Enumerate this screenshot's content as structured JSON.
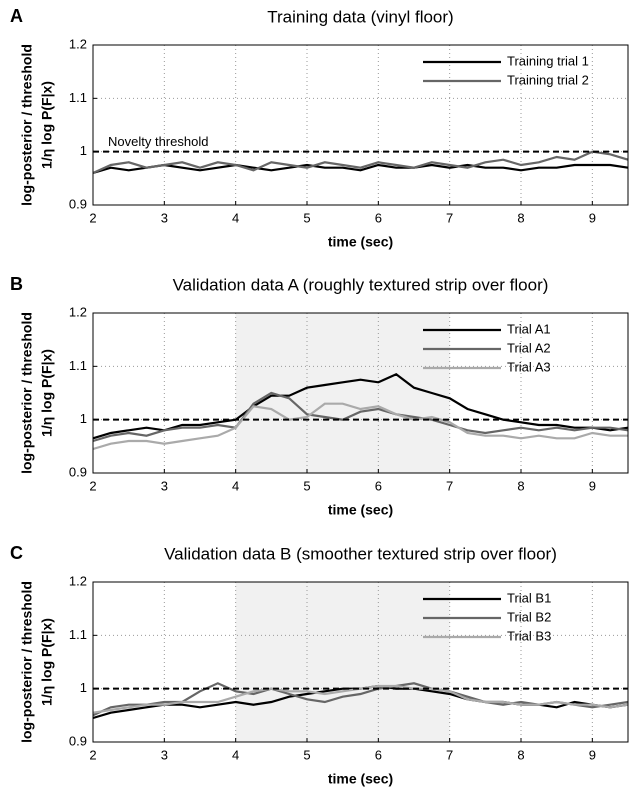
{
  "chart_data": [
    {
      "type": "line",
      "panel_label": "A",
      "title": "Training data (vinyl floor)",
      "xlabel": "time (sec)",
      "ylabel": [
        "log-posterior / threshold",
        "1/η log P(F|x)"
      ],
      "xlim": [
        2,
        9.5
      ],
      "ylim": [
        0.9,
        1.2
      ],
      "xticks": [
        2,
        3,
        4,
        5,
        6,
        7,
        8,
        9
      ],
      "yticks": [
        0.9,
        1,
        1.1,
        1.2
      ],
      "grid": true,
      "legend": "upper right",
      "threshold": 1,
      "annotation": "Novelty threshold",
      "x": [
        2,
        2.25,
        2.5,
        2.75,
        3,
        3.25,
        3.5,
        3.75,
        4,
        4.25,
        4.5,
        4.75,
        5,
        5.25,
        5.5,
        5.75,
        6,
        6.25,
        6.5,
        6.75,
        7,
        7.25,
        7.5,
        7.75,
        8,
        8.25,
        8.5,
        8.75,
        9,
        9.25,
        9.5
      ],
      "series": [
        {
          "name": "Training trial 1",
          "color": "#000000",
          "values": [
            0.96,
            0.97,
            0.965,
            0.97,
            0.975,
            0.97,
            0.965,
            0.97,
            0.975,
            0.97,
            0.965,
            0.97,
            0.975,
            0.97,
            0.97,
            0.965,
            0.975,
            0.97,
            0.97,
            0.975,
            0.97,
            0.975,
            0.97,
            0.97,
            0.965,
            0.97,
            0.97,
            0.975,
            0.975,
            0.975,
            0.97
          ]
        },
        {
          "name": "Training trial 2",
          "color": "#666666",
          "values": [
            0.96,
            0.975,
            0.98,
            0.97,
            0.975,
            0.98,
            0.97,
            0.98,
            0.975,
            0.965,
            0.98,
            0.975,
            0.97,
            0.98,
            0.975,
            0.97,
            0.98,
            0.975,
            0.97,
            0.98,
            0.975,
            0.97,
            0.98,
            0.985,
            0.975,
            0.98,
            0.99,
            0.985,
            1.0,
            0.995,
            0.985
          ]
        }
      ]
    },
    {
      "type": "line",
      "panel_label": "B",
      "title": "Validation data A (roughly textured strip over floor)",
      "xlabel": "time (sec)",
      "ylabel": [
        "log-posterior / threshold",
        "1/η log P(F|x)"
      ],
      "xlim": [
        2,
        9.5
      ],
      "ylim": [
        0.9,
        1.2
      ],
      "xticks": [
        2,
        3,
        4,
        5,
        6,
        7,
        8,
        9
      ],
      "yticks": [
        0.9,
        1,
        1.1,
        1.2
      ],
      "grid": true,
      "legend": "upper right",
      "threshold": 1,
      "shaded_region": [
        4,
        7
      ],
      "x": [
        2,
        2.25,
        2.5,
        2.75,
        3,
        3.25,
        3.5,
        3.75,
        4,
        4.25,
        4.5,
        4.75,
        5,
        5.25,
        5.5,
        5.75,
        6,
        6.25,
        6.5,
        6.75,
        7,
        7.25,
        7.5,
        7.75,
        8,
        8.25,
        8.5,
        8.75,
        9,
        9.25,
        9.5
      ],
      "series": [
        {
          "name": "Trial A1",
          "color": "#000000",
          "values": [
            0.965,
            0.975,
            0.98,
            0.985,
            0.98,
            0.99,
            0.99,
            0.995,
            1.0,
            1.025,
            1.045,
            1.045,
            1.06,
            1.065,
            1.07,
            1.075,
            1.07,
            1.085,
            1.06,
            1.05,
            1.04,
            1.02,
            1.01,
            1.0,
            0.995,
            0.99,
            0.99,
            0.985,
            0.985,
            0.98,
            0.985
          ]
        },
        {
          "name": "Trial A2",
          "color": "#666666",
          "values": [
            0.96,
            0.97,
            0.975,
            0.97,
            0.98,
            0.985,
            0.985,
            0.99,
            0.985,
            1.03,
            1.05,
            1.04,
            1.01,
            1.005,
            1.0,
            1.015,
            1.02,
            1.01,
            1.005,
            1.0,
            0.99,
            0.98,
            0.975,
            0.98,
            0.985,
            0.98,
            0.985,
            0.98,
            0.985,
            0.985,
            0.98
          ]
        },
        {
          "name": "Trial A3",
          "color": "#aaaaaa",
          "values": [
            0.945,
            0.955,
            0.96,
            0.96,
            0.955,
            0.96,
            0.965,
            0.97,
            0.985,
            1.025,
            1.02,
            1.0,
            1.005,
            1.03,
            1.03,
            1.02,
            1.025,
            1.01,
            1.0,
            1.005,
            0.995,
            0.975,
            0.97,
            0.97,
            0.965,
            0.97,
            0.965,
            0.965,
            0.975,
            0.97,
            0.97
          ]
        }
      ]
    },
    {
      "type": "line",
      "panel_label": "C",
      "title": "Validation data B (smoother textured strip over floor)",
      "xlabel": "time (sec)",
      "ylabel": [
        "log-posterior / threshold",
        "1/η log P(F|x)"
      ],
      "xlim": [
        2,
        9.5
      ],
      "ylim": [
        0.9,
        1.2
      ],
      "xticks": [
        2,
        3,
        4,
        5,
        6,
        7,
        8,
        9
      ],
      "yticks": [
        0.9,
        1,
        1.1,
        1.2
      ],
      "grid": true,
      "legend": "upper right",
      "threshold": 1,
      "shaded_region": [
        4,
        7
      ],
      "x": [
        2,
        2.25,
        2.5,
        2.75,
        3,
        3.25,
        3.5,
        3.75,
        4,
        4.25,
        4.5,
        4.75,
        5,
        5.25,
        5.5,
        5.75,
        6,
        6.25,
        6.5,
        6.75,
        7,
        7.25,
        7.5,
        7.75,
        8,
        8.25,
        8.5,
        8.75,
        9,
        9.25,
        9.5
      ],
      "series": [
        {
          "name": "Trial B1",
          "color": "#000000",
          "values": [
            0.945,
            0.955,
            0.96,
            0.965,
            0.97,
            0.97,
            0.965,
            0.97,
            0.975,
            0.97,
            0.975,
            0.985,
            0.99,
            0.995,
            1.0,
            1.0,
            1.005,
            1.0,
            1.0,
            0.995,
            0.99,
            0.98,
            0.975,
            0.975,
            0.97,
            0.97,
            0.965,
            0.975,
            0.97,
            0.965,
            0.97
          ]
        },
        {
          "name": "Trial B2",
          "color": "#666666",
          "values": [
            0.95,
            0.965,
            0.97,
            0.97,
            0.975,
            0.975,
            0.995,
            1.01,
            0.995,
            0.99,
            1.0,
            0.99,
            0.98,
            0.975,
            0.985,
            0.99,
            1.0,
            1.005,
            1.01,
            1.0,
            0.995,
            0.985,
            0.975,
            0.97,
            0.975,
            0.97,
            0.975,
            0.97,
            0.965,
            0.97,
            0.975
          ]
        },
        {
          "name": "Trial B3",
          "color": "#aaaaaa",
          "values": [
            0.955,
            0.96,
            0.965,
            0.97,
            0.97,
            0.975,
            0.975,
            0.975,
            0.985,
            0.995,
            1.0,
            0.995,
            0.995,
            0.99,
            0.995,
            1.0,
            1.005,
            1.005,
            1.0,
            1.0,
            0.995,
            0.98,
            0.975,
            0.975,
            0.97,
            0.97,
            0.975,
            0.97,
            0.97,
            0.965,
            0.97
          ]
        }
      ]
    }
  ]
}
